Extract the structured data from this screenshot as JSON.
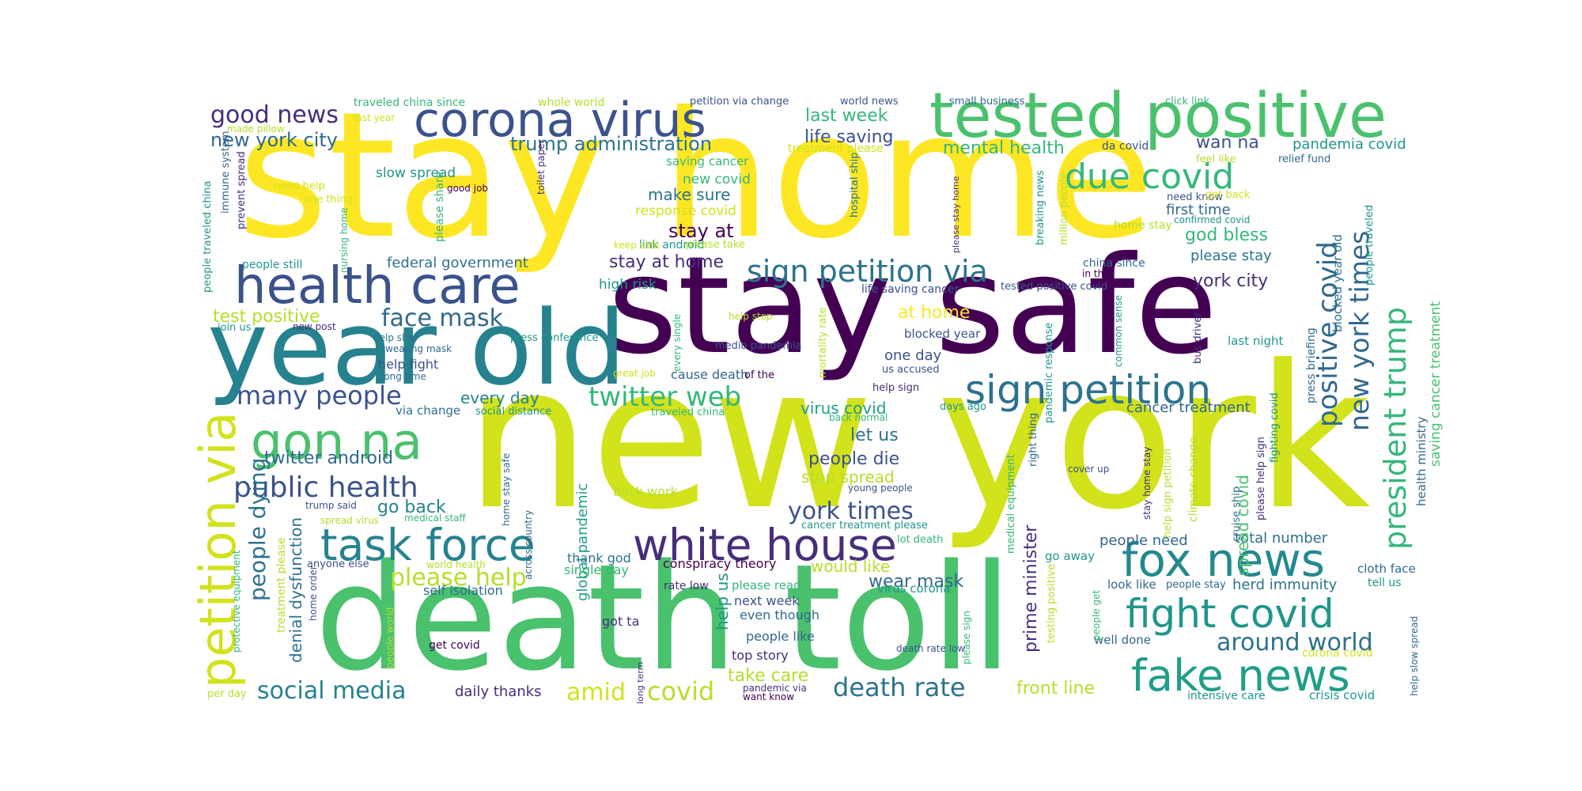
{
  "word_cloud": {
    "palette": "viridis",
    "words": [
      {
        "text": "new york",
        "color": "#d2e21b"
      },
      {
        "text": "stay home",
        "color": "#fde725"
      },
      {
        "text": "death toll",
        "color": "#4ac16d"
      },
      {
        "text": "stay safe",
        "color": "#440154"
      },
      {
        "text": "year old",
        "color": "#26828e"
      },
      {
        "text": "tested positive",
        "color": "#4ac16d"
      },
      {
        "text": "corona virus",
        "color": "#3b528b"
      },
      {
        "text": "health care",
        "color": "#3b528b"
      },
      {
        "text": "gon na",
        "color": "#4ac16d"
      },
      {
        "text": "petition via",
        "color": "#d2e21b"
      },
      {
        "text": "white house",
        "color": "#472d7b"
      },
      {
        "text": "task force",
        "color": "#26828e"
      },
      {
        "text": "fox news",
        "color": "#23898e"
      },
      {
        "text": "fake news",
        "color": "#1f9e89"
      },
      {
        "text": "fight covid",
        "color": "#1f968b"
      },
      {
        "text": "sign petition",
        "color": "#2c728e"
      },
      {
        "text": "sign petition via",
        "color": "#2c728e"
      },
      {
        "text": "president trump",
        "color": "#35b779"
      },
      {
        "text": "due covid",
        "color": "#35b779"
      },
      {
        "text": "positive covid",
        "color": "#31688e"
      },
      {
        "text": "new york times",
        "color": "#31688e"
      },
      {
        "text": "public health",
        "color": "#3b528b"
      },
      {
        "text": "twitter web",
        "color": "#35b779"
      },
      {
        "text": "many people",
        "color": "#3b528b"
      },
      {
        "text": "good news",
        "color": "#472d7b"
      },
      {
        "text": "york times",
        "color": "#3b528b"
      },
      {
        "text": "around world",
        "color": "#2c728e"
      },
      {
        "text": "death rate",
        "color": "#2c728e"
      },
      {
        "text": "please help",
        "color": "#b5de2b"
      },
      {
        "text": "social media",
        "color": "#26828e"
      },
      {
        "text": "face mask",
        "color": "#31688e"
      },
      {
        "text": "people dying",
        "color": "#2c728e"
      },
      {
        "text": "amid",
        "color": "#d2e21b"
      },
      {
        "text": "covid",
        "color": "#b5de2b"
      },
      {
        "text": "new york city",
        "color": "#31688e"
      },
      {
        "text": "trump administration",
        "color": "#2c728e"
      },
      {
        "text": "twitter android",
        "color": "#31688e"
      },
      {
        "text": "life saving",
        "color": "#3b528b"
      },
      {
        "text": "mental health",
        "color": "#35b779"
      },
      {
        "text": "last week",
        "color": "#35b779"
      },
      {
        "text": "stay at home",
        "color": "#472d7b"
      },
      {
        "text": "stay at",
        "color": "#440154"
      },
      {
        "text": "make sure",
        "color": "#2c728e"
      },
      {
        "text": "every day",
        "color": "#26828e"
      },
      {
        "text": "people die",
        "color": "#3b528b"
      },
      {
        "text": "let us",
        "color": "#2c728e"
      },
      {
        "text": "virus covid",
        "color": "#1f9e89"
      },
      {
        "text": "stop spread",
        "color": "#b5de2b"
      },
      {
        "text": "wear mask",
        "color": "#31688e"
      },
      {
        "text": "would like",
        "color": "#b5de2b"
      },
      {
        "text": "go back",
        "color": "#26828e"
      },
      {
        "text": "one day",
        "color": "#3b528b"
      },
      {
        "text": "at home",
        "color": "#fde725"
      },
      {
        "text": "god bless",
        "color": "#35b779"
      },
      {
        "text": "first time",
        "color": "#31688e"
      },
      {
        "text": "please stay",
        "color": "#2c728e"
      },
      {
        "text": "york city",
        "color": "#472d7b"
      },
      {
        "text": "wan na",
        "color": "#3b528b"
      },
      {
        "text": "pandemia covid",
        "color": "#1f968b"
      },
      {
        "text": "cancer treatment",
        "color": "#31688e"
      },
      {
        "text": "people need",
        "color": "#31688e"
      },
      {
        "text": "total number",
        "color": "#2c728e"
      },
      {
        "text": "herd immunity",
        "color": "#2c728e"
      },
      {
        "text": "front line",
        "color": "#b5de2b"
      },
      {
        "text": "daily thanks",
        "color": "#472d7b"
      },
      {
        "text": "federal government",
        "color": "#2c728e"
      },
      {
        "text": "test positive",
        "color": "#b5de2b"
      },
      {
        "text": "prime minister",
        "color": "#472d7b"
      },
      {
        "text": "denial dysfunction",
        "color": "#2c728e"
      },
      {
        "text": "spread covid",
        "color": "#4ac16d"
      },
      {
        "text": "help us",
        "color": "#1f968b"
      },
      {
        "text": "take care",
        "color": "#b5de2b"
      },
      {
        "text": "top story",
        "color": "#472d7b"
      },
      {
        "text": "even though",
        "color": "#31688e"
      },
      {
        "text": "next week",
        "color": "#3b528b"
      },
      {
        "text": "people like",
        "color": "#31688e"
      },
      {
        "text": "new covid",
        "color": "#35b779"
      },
      {
        "text": "response covid",
        "color": "#d2e21b"
      },
      {
        "text": "high risk",
        "color": "#1f968b"
      },
      {
        "text": "link android",
        "color": "#1f968b"
      },
      {
        "text": "help fight",
        "color": "#3b528b"
      },
      {
        "text": "cause death",
        "color": "#31688e"
      },
      {
        "text": "back work",
        "color": "#b5de2b"
      },
      {
        "text": "global pandemic",
        "color": "#1f9e89"
      },
      {
        "text": "conspiracy theory",
        "color": "#440154"
      },
      {
        "text": "thank god",
        "color": "#2c728e"
      },
      {
        "text": "single day",
        "color": "#35b779"
      },
      {
        "text": "rate low",
        "color": "#472d7b"
      },
      {
        "text": "please read",
        "color": "#35b779"
      },
      {
        "text": "virus corona",
        "color": "#1f968b"
      },
      {
        "text": "self isolation",
        "color": "#31688e"
      },
      {
        "text": "got ta",
        "color": "#472d7b"
      },
      {
        "text": "get covid",
        "color": "#440154"
      },
      {
        "text": "crisis covid",
        "color": "#1f968b"
      },
      {
        "text": "intensive care",
        "color": "#1f968b"
      },
      {
        "text": "corona covid",
        "color": "#d2e21b"
      },
      {
        "text": "cloth face",
        "color": "#31688e"
      },
      {
        "text": "tell us",
        "color": "#1f968b"
      },
      {
        "text": "well done",
        "color": "#31688e"
      },
      {
        "text": "look like",
        "color": "#31688e"
      },
      {
        "text": "go away",
        "color": "#1f968b"
      },
      {
        "text": "blocked year",
        "color": "#3b528b"
      },
      {
        "text": "last night",
        "color": "#1f968b"
      },
      {
        "text": "saving cancer treatment",
        "color": "#4ac16d"
      },
      {
        "text": "health ministry",
        "color": "#31688e"
      },
      {
        "text": "help slow spread",
        "color": "#31688e"
      },
      {
        "text": "press briefing",
        "color": "#31688e"
      },
      {
        "text": "people traveled",
        "color": "#1f968b"
      },
      {
        "text": "blocked year old",
        "color": "#2c728e"
      },
      {
        "text": "fighting covid",
        "color": "#1f968b"
      },
      {
        "text": "please help sign",
        "color": "#472d7b"
      },
      {
        "text": "cruise ship",
        "color": "#2c728e"
      },
      {
        "text": "climate change",
        "color": "#b5de2b"
      },
      {
        "text": "help sign petition",
        "color": "#b5de2b"
      },
      {
        "text": "stay home stay",
        "color": "#472d7b"
      },
      {
        "text": "right thing",
        "color": "#31688e"
      },
      {
        "text": "medical equipment",
        "color": "#35b779"
      },
      {
        "text": "testing positive",
        "color": "#b5de2b"
      },
      {
        "text": "people get",
        "color": "#35b779"
      },
      {
        "text": "please sign",
        "color": "#35b779"
      },
      {
        "text": "bus driver",
        "color": "#472d7b"
      },
      {
        "text": "common sense",
        "color": "#1f968b"
      },
      {
        "text": "pandemic response",
        "color": "#1f968b"
      },
      {
        "text": "million people",
        "color": "#b5de2b"
      },
      {
        "text": "breaking news",
        "color": "#1f968b"
      },
      {
        "text": "please stay home",
        "color": "#472d7b"
      },
      {
        "text": "hospital ship",
        "color": "#2c728e"
      },
      {
        "text": "mortality rate",
        "color": "#b5de2b"
      },
      {
        "text": "every single",
        "color": "#35b779"
      },
      {
        "text": "toilet paper",
        "color": "#472d7b"
      },
      {
        "text": "please share",
        "color": "#35b779"
      },
      {
        "text": "nursing home",
        "color": "#35b779"
      },
      {
        "text": "immune system",
        "color": "#31688e"
      },
      {
        "text": "prevent spread",
        "color": "#472d7b"
      },
      {
        "text": "people traveled china",
        "color": "#1f968b"
      },
      {
        "text": "protective equipment",
        "color": "#35b779"
      },
      {
        "text": "treatment please",
        "color": "#b5de2b"
      },
      {
        "text": "home order",
        "color": "#3b528b"
      },
      {
        "text": "people world",
        "color": "#b5de2b"
      },
      {
        "text": "long term",
        "color": "#472d7b"
      },
      {
        "text": "across country",
        "color": "#31688e"
      },
      {
        "text": "home stay safe",
        "color": "#31688e"
      },
      {
        "text": "traveled china since",
        "color": "#35b779"
      },
      {
        "text": "whole world",
        "color": "#b5de2b"
      },
      {
        "text": "petition via change",
        "color": "#3b528b"
      },
      {
        "text": "world news",
        "color": "#3b528b"
      },
      {
        "text": "small business",
        "color": "#31688e"
      },
      {
        "text": "click link",
        "color": "#35b779"
      },
      {
        "text": "made pillow",
        "color": "#b5de2b"
      },
      {
        "text": "last year",
        "color": "#d2e21b"
      },
      {
        "text": "slow spread",
        "color": "#1f968b"
      },
      {
        "text": "saving cancer",
        "color": "#35b779"
      },
      {
        "text": "treatment please",
        "color": "#d2e21b"
      },
      {
        "text": "da covid",
        "color": "#3b528b"
      },
      {
        "text": "relief fund",
        "color": "#31688e"
      },
      {
        "text": "feel like",
        "color": "#b5de2b"
      },
      {
        "text": "need know",
        "color": "#3b528b"
      },
      {
        "text": "get back",
        "color": "#d2e21b"
      },
      {
        "text": "confirmed covid",
        "color": "#1f968b"
      },
      {
        "text": "home stay",
        "color": "#b5de2b"
      },
      {
        "text": "need help",
        "color": "#d2e21b"
      },
      {
        "text": "one thing",
        "color": "#d2e21b"
      },
      {
        "text": "good job",
        "color": "#440154"
      },
      {
        "text": "keep safe",
        "color": "#d2e21b"
      },
      {
        "text": "please take",
        "color": "#b5de2b"
      },
      {
        "text": "people still",
        "color": "#1f968b"
      },
      {
        "text": "press conference",
        "color": "#1f968b"
      },
      {
        "text": "china since",
        "color": "#31688e"
      },
      {
        "text": "in the",
        "color": "#440154"
      },
      {
        "text": "life saving cancer",
        "color": "#3b528b"
      },
      {
        "text": "tested positive covid",
        "color": "#3b528b"
      },
      {
        "text": "help stop",
        "color": "#b5de2b"
      },
      {
        "text": "join us",
        "color": "#1f968b"
      },
      {
        "text": "new post",
        "color": "#472d7b"
      },
      {
        "text": "help slow",
        "color": "#2c728e"
      },
      {
        "text": "wearing mask",
        "color": "#31688e"
      },
      {
        "text": "long time",
        "color": "#31688e"
      },
      {
        "text": "medio pandemia",
        "color": "#3b528b"
      },
      {
        "text": "great job",
        "color": "#d2e21b"
      },
      {
        "text": "of the",
        "color": "#440154"
      },
      {
        "text": "us accused",
        "color": "#3b528b"
      },
      {
        "text": "help sign",
        "color": "#472d7b"
      },
      {
        "text": "days ago",
        "color": "#1f968b"
      },
      {
        "text": "via change",
        "color": "#2c728e"
      },
      {
        "text": "social distance",
        "color": "#1f968b"
      },
      {
        "text": "traveled china",
        "color": "#35b779"
      },
      {
        "text": "back normal",
        "color": "#35b779"
      },
      {
        "text": "young people",
        "color": "#3b528b"
      },
      {
        "text": "cover up",
        "color": "#3b528b"
      },
      {
        "text": "trump said",
        "color": "#3b528b"
      },
      {
        "text": "spread virus",
        "color": "#b5de2b"
      },
      {
        "text": "medical staff",
        "color": "#35b779"
      },
      {
        "text": "cancer treatment please",
        "color": "#1f968b"
      },
      {
        "text": "lot death",
        "color": "#35b779"
      },
      {
        "text": "anyone else",
        "color": "#3b528b"
      },
      {
        "text": "world health",
        "color": "#b5de2b"
      },
      {
        "text": "people stay",
        "color": "#31688e"
      },
      {
        "text": "pandemic via",
        "color": "#472d7b"
      },
      {
        "text": "want know",
        "color": "#440154"
      },
      {
        "text": "per day",
        "color": "#b5de2b"
      },
      {
        "text": "death rate low",
        "color": "#3b528b"
      }
    ]
  }
}
